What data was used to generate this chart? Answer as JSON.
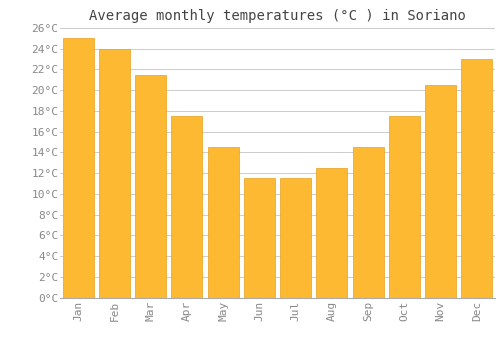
{
  "title": "Average monthly temperatures (°C ) in Soriano",
  "months": [
    "Jan",
    "Feb",
    "Mar",
    "Apr",
    "May",
    "Jun",
    "Jul",
    "Aug",
    "Sep",
    "Oct",
    "Nov",
    "Dec"
  ],
  "temperatures": [
    25.0,
    24.0,
    21.5,
    17.5,
    14.5,
    11.5,
    11.5,
    12.5,
    14.5,
    17.5,
    20.5,
    23.0
  ],
  "bar_color": "#FDB931",
  "bar_edge_color": "#E8A020",
  "background_color": "#FFFFFF",
  "grid_color": "#CCCCCC",
  "title_color": "#444444",
  "tick_label_color": "#888888",
  "ylim": [
    0,
    26
  ],
  "ytick_step": 2,
  "title_fontsize": 10,
  "tick_fontsize": 8,
  "bar_width": 0.85
}
